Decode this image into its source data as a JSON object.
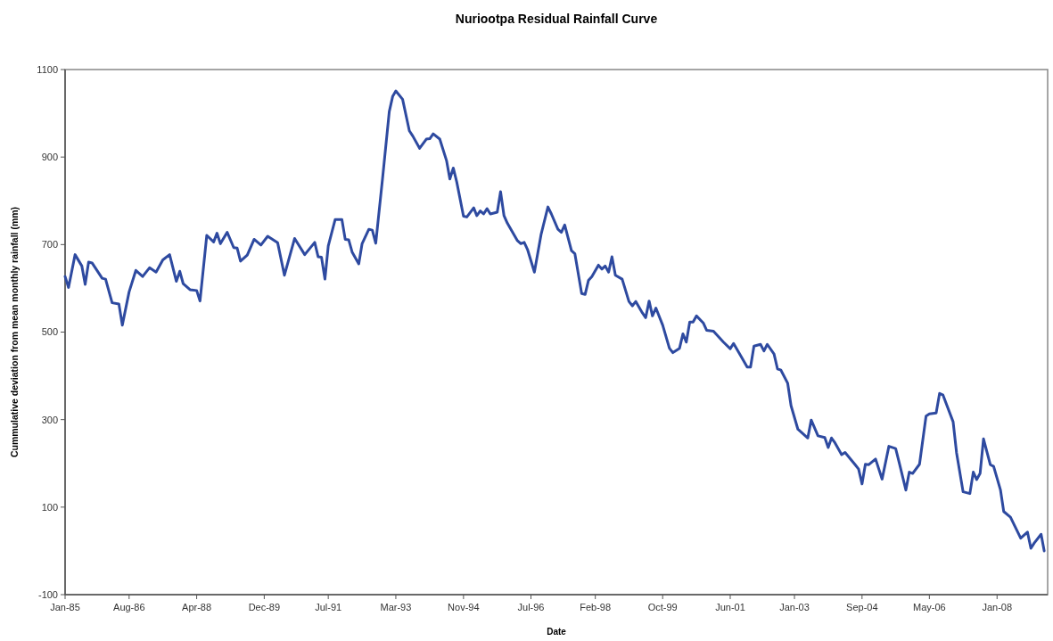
{
  "chart_data": {
    "type": "line",
    "title": "Nuriootpa Residual Rainfall Curve",
    "xlabel": "Date",
    "ylabel": "Cummulative deviation from mean monthly rainfall (mm)",
    "x": [
      "1985-01",
      "1985-02",
      "1985-04",
      "1985-06",
      "1985-07",
      "1985-08",
      "1985-09",
      "1985-12",
      "1986-01",
      "1986-03",
      "1986-05",
      "1986-06",
      "1986-08",
      "1986-10",
      "1986-12",
      "1987-02",
      "1987-04",
      "1987-06",
      "1987-08",
      "1987-10",
      "1987-11",
      "1987-12",
      "1988-02",
      "1988-04",
      "1988-05",
      "1988-07",
      "1988-09",
      "1988-10",
      "1988-11",
      "1989-01",
      "1989-03",
      "1989-04",
      "1989-05",
      "1989-07",
      "1989-09",
      "1989-11",
      "1990-01",
      "1990-04",
      "1990-06",
      "1990-09",
      "1990-12",
      "1991-03",
      "1991-04",
      "1991-05",
      "1991-06",
      "1991-07",
      "1991-09",
      "1991-11",
      "1991-12",
      "1992-01",
      "1992-02",
      "1992-04",
      "1992-05",
      "1992-07",
      "1992-08",
      "1992-09",
      "1992-11",
      "1993-01",
      "1993-02",
      "1993-03",
      "1993-05",
      "1993-07",
      "1993-08",
      "1993-10",
      "1993-12",
      "1994-01",
      "1994-02",
      "1994-04",
      "1994-06",
      "1994-07",
      "1994-08",
      "1994-09",
      "1994-11",
      "1994-12",
      "1995-02",
      "1995-03",
      "1995-04",
      "1995-05",
      "1995-06",
      "1995-07",
      "1995-09",
      "1995-10",
      "1995-11",
      "1995-12",
      "1996-03",
      "1996-04",
      "1996-05",
      "1996-06",
      "1996-08",
      "1996-10",
      "1996-12",
      "1997-01",
      "1997-03",
      "1997-04",
      "1997-05",
      "1997-07",
      "1997-08",
      "1997-10",
      "1997-11",
      "1997-12",
      "1998-01",
      "1998-03",
      "1998-04",
      "1998-05",
      "1998-06",
      "1998-07",
      "1998-08",
      "1998-10",
      "1998-12",
      "1999-01",
      "1999-02",
      "1999-04",
      "1999-05",
      "1999-06",
      "1999-07",
      "1999-08",
      "1999-10",
      "1999-12",
      "2000-01",
      "2000-03",
      "2000-04",
      "2000-05",
      "2000-06",
      "2000-07",
      "2000-08",
      "2000-10",
      "2000-11",
      "2001-01",
      "2001-04",
      "2001-06",
      "2001-07",
      "2001-09",
      "2001-11",
      "2001-12",
      "2002-01",
      "2002-03",
      "2002-04",
      "2002-05",
      "2002-07",
      "2002-08",
      "2002-09",
      "2002-11",
      "2002-12",
      "2003-02",
      "2003-05",
      "2003-06",
      "2003-08",
      "2003-10",
      "2003-11",
      "2003-12",
      "2004-01",
      "2004-03",
      "2004-04",
      "2004-07",
      "2004-08",
      "2004-09",
      "2004-10",
      "2004-11",
      "2005-01",
      "2005-03",
      "2005-05",
      "2005-07",
      "2005-08",
      "2005-10",
      "2005-11",
      "2005-12",
      "2006-02",
      "2006-04",
      "2006-05",
      "2006-07",
      "2006-08",
      "2006-09",
      "2006-12",
      "2007-01",
      "2007-03",
      "2007-05",
      "2007-06",
      "2007-07",
      "2007-08",
      "2007-09",
      "2007-11",
      "2007-12",
      "2008-02",
      "2008-03",
      "2008-05",
      "2008-08",
      "2008-10",
      "2008-11",
      "2008-12",
      "2009-02",
      "2009-03"
    ],
    "series": [
      {
        "color": "#2e4aa0",
        "values": [
          627,
          602,
          677,
          651,
          609,
          660,
          658,
          623,
          621,
          567,
          564,
          516,
          592,
          641,
          627,
          647,
          637,
          665,
          677,
          616,
          639,
          611,
          597,
          595,
          571,
          721,
          706,
          726,
          702,
          728,
          693,
          692,
          662,
          676,
          712,
          699,
          719,
          704,
          630,
          714,
          677,
          705,
          672,
          671,
          621,
          697,
          757,
          757,
          712,
          711,
          683,
          656,
          702,
          735,
          733,
          703,
          850,
          1004,
          1039,
          1051,
          1032,
          960,
          948,
          920,
          941,
          942,
          953,
          941,
          892,
          850,
          875,
          843,
          765,
          763,
          784,
          766,
          777,
          770,
          782,
          770,
          774,
          821,
          766,
          749,
          709,
          702,
          705,
          688,
          637,
          724,
          786,
          770,
          735,
          728,
          745,
          686,
          679,
          588,
          586,
          618,
          627,
          653,
          644,
          651,
          637,
          672,
          630,
          621,
          570,
          560,
          570,
          544,
          533,
          571,
          537,
          555,
          516,
          463,
          453,
          463,
          496,
          477,
          523,
          523,
          537,
          521,
          504,
          502,
          477,
          462,
          474,
          447,
          420,
          420,
          468,
          472,
          457,
          472,
          450,
          416,
          413,
          383,
          332,
          278,
          258,
          299,
          263,
          259,
          236,
          258,
          247,
          220,
          225,
          197,
          187,
          153,
          198,
          197,
          210,
          164,
          239,
          234,
          203,
          139,
          180,
          177,
          198,
          308,
          313,
          315,
          360,
          356,
          295,
          224,
          135,
          131,
          180,
          163,
          177,
          256,
          197,
          193,
          139,
          90,
          77,
          29,
          43,
          6,
          18,
          38,
          0
        ]
      }
    ],
    "xlim": [
      "1985-01",
      "2009-04"
    ],
    "xticks": [
      {
        "value": "1985-01",
        "label": "Jan-85"
      },
      {
        "value": "1986-08",
        "label": "Aug-86"
      },
      {
        "value": "1988-04",
        "label": "Apr-88"
      },
      {
        "value": "1989-12",
        "label": "Dec-89"
      },
      {
        "value": "1991-07",
        "label": "Jul-91"
      },
      {
        "value": "1993-03",
        "label": "Mar-93"
      },
      {
        "value": "1994-11",
        "label": "Nov-94"
      },
      {
        "value": "1996-07",
        "label": "Jul-96"
      },
      {
        "value": "1998-02",
        "label": "Feb-98"
      },
      {
        "value": "1999-10",
        "label": "Oct-99"
      },
      {
        "value": "2001-06",
        "label": "Jun-01"
      },
      {
        "value": "2003-01",
        "label": "Jan-03"
      },
      {
        "value": "2004-09",
        "label": "Sep-04"
      },
      {
        "value": "2006-05",
        "label": "May-06"
      },
      {
        "value": "2008-01",
        "label": "Jan-08"
      }
    ],
    "ylim": [
      -100,
      1100
    ],
    "yticks": [
      -100,
      100,
      300,
      500,
      700,
      900,
      1100
    ],
    "line_style": "solid"
  }
}
